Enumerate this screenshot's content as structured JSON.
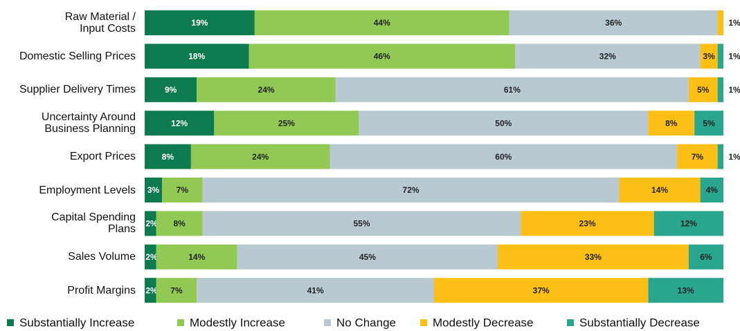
{
  "chart_data": {
    "type": "stacked-bar-horizontal",
    "categories": [
      "Raw Material /\nInput Costs",
      "Domestic Selling Prices",
      "Supplier Delivery Times",
      "Uncertainty Around\nBusiness Planning",
      "Export Prices",
      "Employment Levels",
      "Capital Spending\nPlans",
      "Sales Volume",
      "Profit Margins"
    ],
    "series": [
      {
        "name": "Substantially Increase",
        "color": "#0e7a4f",
        "values": [
          19,
          18,
          9,
          12,
          8,
          3,
          2,
          2,
          2
        ],
        "value_labels": [
          "19%",
          "18%",
          "9%",
          "12%",
          "8%",
          "3%",
          "2%",
          "2%",
          "2%"
        ]
      },
      {
        "name": "Modestly Increase",
        "color": "#92c955",
        "values": [
          44,
          46,
          24,
          25,
          24,
          7,
          8,
          14,
          7
        ],
        "value_labels": [
          "44%",
          "46%",
          "24%",
          "25%",
          "24%",
          "7%",
          "8%",
          "14%",
          "7%"
        ]
      },
      {
        "name": "No Change",
        "color": "#b9c9d1",
        "values": [
          36,
          32,
          61,
          50,
          60,
          72,
          55,
          45,
          41
        ],
        "value_labels": [
          "36%",
          "32%",
          "61%",
          "50%",
          "60%",
          "72%",
          "55%",
          "45%",
          "41%"
        ]
      },
      {
        "name": "Modestly Decrease",
        "color": "#fbbf16",
        "values": [
          1,
          3,
          5,
          8,
          7,
          14,
          23,
          33,
          37
        ],
        "value_labels": [
          "1%",
          "3%",
          "5%",
          "8%",
          "7%",
          "14%",
          "23%",
          "33%",
          "37%"
        ]
      },
      {
        "name": "Substantially Decrease",
        "color": "#2aa58e",
        "values": [
          null,
          1,
          1,
          5,
          1,
          4,
          12,
          6,
          13
        ],
        "value_labels": [
          null,
          "1%",
          "1%",
          "5%",
          "1%",
          "4%",
          "12%",
          "6%",
          "13%"
        ]
      }
    ],
    "legend": "bottom"
  }
}
